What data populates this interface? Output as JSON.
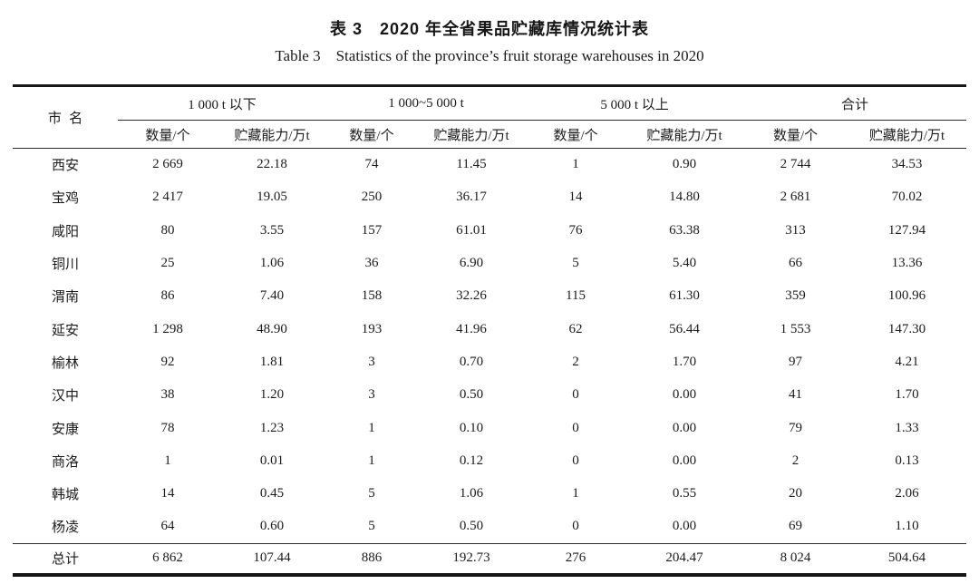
{
  "caption_zh": "表 3　2020 年全省果品贮藏库情况统计表",
  "caption_en": "Table 3　Statistics of the province’s fruit storage warehouses in 2020",
  "table": {
    "city_header": "市名",
    "groups": [
      "1 000 t 以下",
      "1 000~5 000 t",
      "5 000 t 以上",
      "合计"
    ],
    "sub_headers": {
      "count": "数量/个",
      "capacity": "贮藏能力/万t"
    },
    "rows": [
      {
        "city": "西安",
        "values": [
          "2 669",
          "22.18",
          "74",
          "11.45",
          "1",
          "0.90",
          "2 744",
          "34.53"
        ]
      },
      {
        "city": "宝鸡",
        "values": [
          "2 417",
          "19.05",
          "250",
          "36.17",
          "14",
          "14.80",
          "2 681",
          "70.02"
        ]
      },
      {
        "city": "咸阳",
        "values": [
          "80",
          "3.55",
          "157",
          "61.01",
          "76",
          "63.38",
          "313",
          "127.94"
        ]
      },
      {
        "city": "铜川",
        "values": [
          "25",
          "1.06",
          "36",
          "6.90",
          "5",
          "5.40",
          "66",
          "13.36"
        ]
      },
      {
        "city": "渭南",
        "values": [
          "86",
          "7.40",
          "158",
          "32.26",
          "115",
          "61.30",
          "359",
          "100.96"
        ]
      },
      {
        "city": "延安",
        "values": [
          "1 298",
          "48.90",
          "193",
          "41.96",
          "62",
          "56.44",
          "1 553",
          "147.30"
        ]
      },
      {
        "city": "榆林",
        "values": [
          "92",
          "1.81",
          "3",
          "0.70",
          "2",
          "1.70",
          "97",
          "4.21"
        ]
      },
      {
        "city": "汉中",
        "values": [
          "38",
          "1.20",
          "3",
          "0.50",
          "0",
          "0.00",
          "41",
          "1.70"
        ]
      },
      {
        "city": "安康",
        "values": [
          "78",
          "1.23",
          "1",
          "0.10",
          "0",
          "0.00",
          "79",
          "1.33"
        ]
      },
      {
        "city": "商洛",
        "values": [
          "1",
          "0.01",
          "1",
          "0.12",
          "0",
          "0.00",
          "2",
          "0.13"
        ]
      },
      {
        "city": "韩城",
        "values": [
          "14",
          "0.45",
          "5",
          "1.06",
          "1",
          "0.55",
          "20",
          "2.06"
        ]
      },
      {
        "city": "杨凌",
        "values": [
          "64",
          "0.60",
          "5",
          "0.50",
          "0",
          "0.00",
          "69",
          "1.10"
        ]
      }
    ],
    "total": {
      "city": "总计",
      "values": [
        "6 862",
        "107.44",
        "886",
        "192.73",
        "276",
        "204.47",
        "8 024",
        "504.64"
      ]
    }
  }
}
